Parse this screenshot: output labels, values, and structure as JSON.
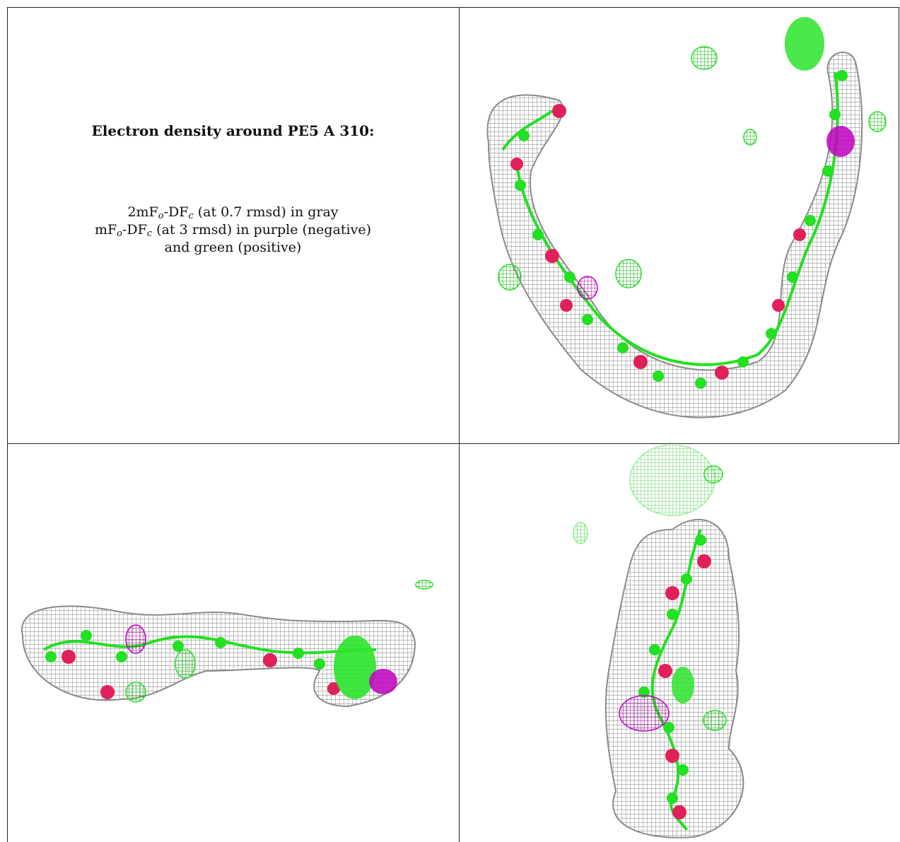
{
  "title": "Electron density around PE5 A 310:",
  "legend": {
    "line1": {
      "pre": "2mF",
      "sub1": "o",
      "mid": "-DF",
      "sub2": "c",
      "post": " (at 0.7 rmsd) in gray"
    },
    "line2": {
      "pre": "mF",
      "sub1": "o",
      "mid": "-DF",
      "sub2": "c",
      "post": " (at 3 rmsd) in purple (negative)"
    },
    "line3": "and green (positive)"
  },
  "colors": {
    "mesh_gray": "#9a9a9a",
    "positive_green": "#22e022",
    "negative_purple": "#c000c0",
    "oxygen_red": "#e0205a"
  },
  "panels": [
    {
      "name": "top-right-view"
    },
    {
      "name": "bottom-left-view"
    },
    {
      "name": "bottom-right-view"
    }
  ]
}
